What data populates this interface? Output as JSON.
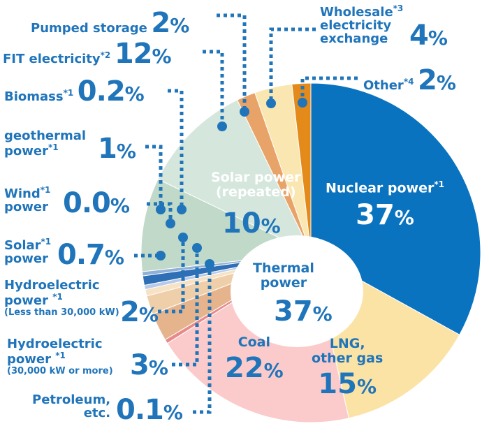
{
  "chart_data": {
    "type": "pie",
    "slices": [
      {
        "key": "nuclear",
        "label": "Nuclear power",
        "note": "*1",
        "value": 37,
        "value_label": "37",
        "color": "#0a73bf"
      },
      {
        "key": "lng",
        "label": "LNG, other gas",
        "value": 15,
        "value_label": "15",
        "color": "#fbe3a6"
      },
      {
        "key": "coal",
        "label": "Coal",
        "value": 22,
        "value_label": "22",
        "color": "#fbcbcb"
      },
      {
        "key": "petroleum",
        "label": "Petroleum, etc.",
        "value": 0.1,
        "value_label": "0.1",
        "color": "#e88a8a"
      },
      {
        "key": "hydro_large",
        "label": "Hydroelectric power",
        "note": "*1",
        "sublabel": "(30,000 kW or more)",
        "value": 3,
        "value_label": "3",
        "color": "#e6b48c"
      },
      {
        "key": "hydro_small",
        "label": "Hydroelectric power",
        "note": "*1",
        "sublabel": "(Less than 30,000 kW)",
        "value": 2,
        "value_label": "2",
        "color": "#efcfa9"
      },
      {
        "key": "solar_small",
        "label": "Solar power",
        "note": "*1",
        "value": 0.7,
        "value_label": "0.7",
        "color": "#f7e2c6"
      },
      {
        "key": "wind",
        "label": "Wind power",
        "note": "*1",
        "value": 0.0,
        "value_label": "0.0",
        "color": "#b7cbe8"
      },
      {
        "key": "geothermal",
        "label": "geothermal power",
        "note": "*1",
        "value": 1,
        "value_label": "1",
        "color": "#2f6fb6"
      },
      {
        "key": "biomass",
        "label": "Biomass",
        "note": "*1",
        "value": 0.2,
        "value_label": "0.2",
        "color": "#8fb0d8"
      },
      {
        "key": "solar_repeated",
        "label": "Solar power (repeated)",
        "value": 10,
        "value_label": "10",
        "color": "#c0d9c8"
      },
      {
        "key": "fit",
        "label": "FIT electricity",
        "note": "*2",
        "value": 12,
        "value_label": "12",
        "color": "#d5e7dc"
      },
      {
        "key": "pumped",
        "label": "Pumped storage",
        "value": 2,
        "value_label": "2",
        "color": "#e8a468"
      },
      {
        "key": "wholesale",
        "label": "Wholesale electricity exchange",
        "note": "*3",
        "value": 4,
        "value_label": "4",
        "color": "#fae6b0"
      },
      {
        "key": "other",
        "label": "Other",
        "note": "*4",
        "value": 2,
        "value_label": "2",
        "color": "#e38a1a"
      }
    ],
    "thermal": {
      "label": "Thermal power",
      "value": 37,
      "value_label": "37"
    },
    "unit": "%"
  },
  "labels": {
    "pumped": {
      "line1": "Pumped storage"
    },
    "wholesale": {
      "line1": "Wholesale",
      "line2": "electricity",
      "line3": "exchange",
      "note": "*3"
    },
    "fit": {
      "line1": "FIT electricity",
      "note": "*2"
    },
    "other": {
      "line1": "Other",
      "note": "*4"
    },
    "biomass": {
      "line1": "Biomass",
      "note": "*1"
    },
    "geothermal": {
      "line1": "geothermal",
      "line2": "power",
      "note": "*1"
    },
    "wind": {
      "line1": "Wind",
      "line2": "power",
      "note": "*1"
    },
    "solar_small": {
      "line1": "Solar",
      "line2": "power",
      "note": "*1"
    },
    "hydro_small": {
      "line1": "Hydroelectric",
      "line2": "power",
      "note": "*1",
      "sub": "(Less than 30,000 kW)"
    },
    "hydro_large": {
      "line1": "Hydroelectric",
      "line2": "power",
      "note": "*1",
      "sub": "(30,000 kW or more)"
    },
    "petroleum": {
      "line1": "Petroleum,",
      "line2": "etc."
    },
    "nuclear": {
      "line1": "Nuclear power",
      "note": "*1"
    },
    "thermal": {
      "line1": "Thermal",
      "line2": "power"
    },
    "coal": {
      "line1": "Coal"
    },
    "lng": {
      "line1": "LNG,",
      "line2": "other gas"
    },
    "solar_repeated": {
      "line1": "Solar power",
      "line2": "(repeated)"
    }
  },
  "colors": {
    "label_blue": "#1f74ba",
    "leader": "#1f74ba"
  }
}
